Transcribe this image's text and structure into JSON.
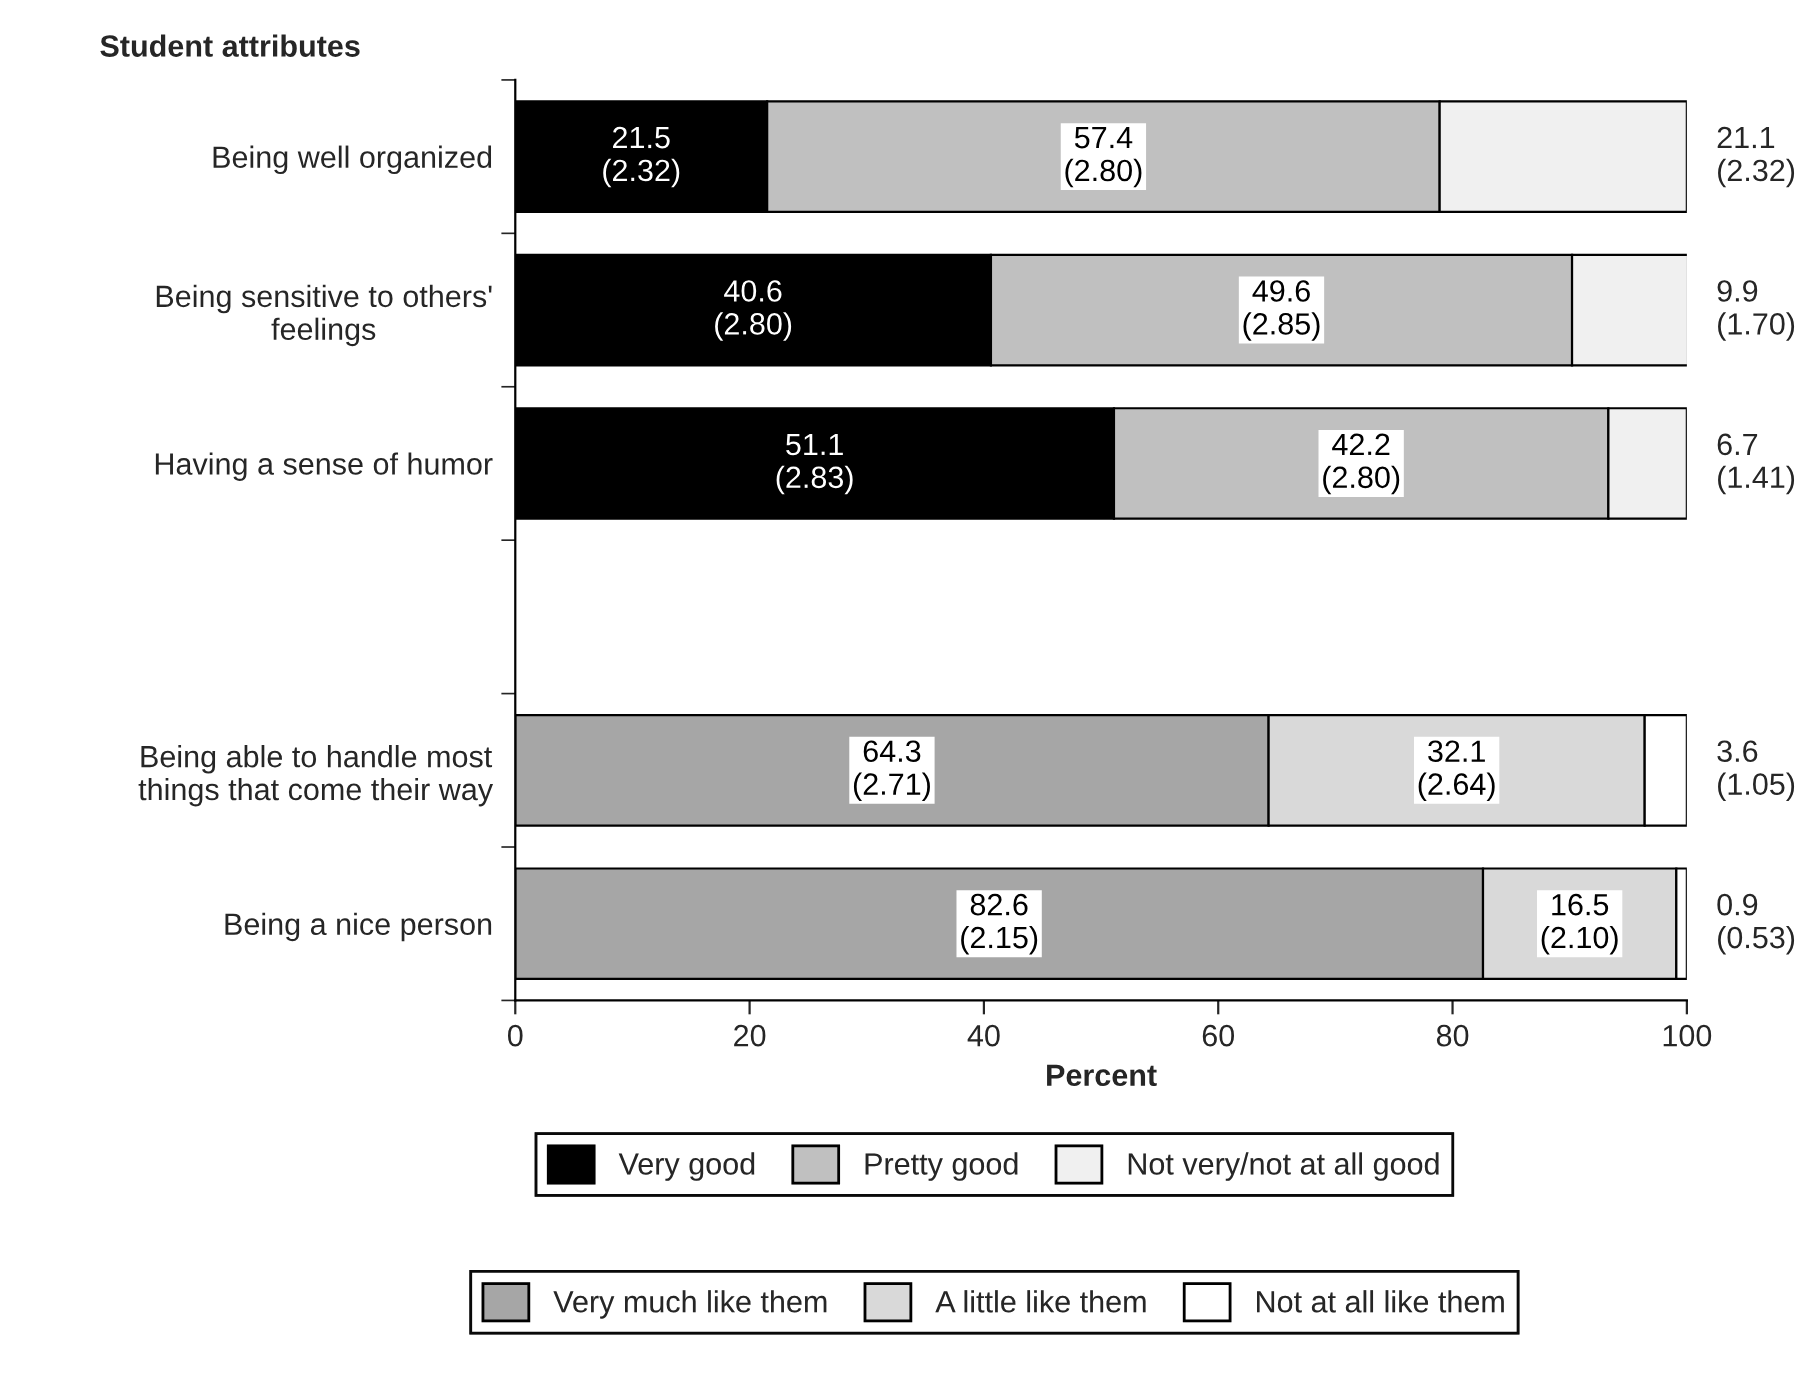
{
  "chart_data": {
    "type": "bar",
    "orientation": "horizontal",
    "stacked": true,
    "ylabel": "Student attributes",
    "xlabel": "Percent",
    "categories": [
      "Being well organized",
      "Being sensitive to others' feelings",
      "Having a sense of humor",
      null,
      "Being able to handle most things that come their way",
      "Being a nice person"
    ],
    "series": [
      {
        "name": "Very good",
        "color": "#000000",
        "values": [
          21.5,
          40.6,
          51.1,
          null,
          null,
          null
        ],
        "value_labels": [
          "21.5\n(2.32)",
          "40.6\n(2.80)",
          "51.1\n(2.83)",
          null,
          null,
          null
        ]
      },
      {
        "name": "Pretty good",
        "color": "#c0c0c0",
        "values": [
          57.4,
          49.6,
          42.2,
          null,
          null,
          null
        ],
        "value_labels": [
          "57.4\n(2.80)",
          "49.6\n(2.85)",
          "42.2\n(2.80)",
          null,
          null,
          null
        ]
      },
      {
        "name": "Not very/not at all good",
        "color": "#f0f0f0",
        "values": [
          21.1,
          9.9,
          6.7,
          null,
          null,
          null
        ],
        "value_labels": [
          "21.1\n(2.32)",
          "9.9\n(1.70)",
          "6.7\n(1.41)",
          null,
          null,
          null
        ]
      },
      {
        "name": "Very much like them",
        "color": "#a6a6a6",
        "values": [
          null,
          null,
          null,
          null,
          64.3,
          82.6
        ],
        "value_labels": [
          null,
          null,
          null,
          null,
          "64.3\n(2.71)",
          "82.6\n(2.15)"
        ]
      },
      {
        "name": "A little like them",
        "color": "#d9d9d9",
        "values": [
          null,
          null,
          null,
          null,
          32.1,
          16.5
        ],
        "value_labels": [
          null,
          null,
          null,
          null,
          "32.1\n(2.64)",
          "16.5\n(2.10)"
        ]
      },
      {
        "name": "Not at all like them",
        "color": "#ffffff",
        "values": [
          null,
          null,
          null,
          null,
          3.6,
          0.9
        ],
        "value_labels": [
          null,
          null,
          null,
          null,
          "3.6\n(1.05)",
          "0.9\n(0.53)"
        ]
      }
    ],
    "xlim": [
      0,
      100
    ],
    "xticks": [
      0,
      20,
      40,
      60,
      80,
      100
    ],
    "grid": false,
    "legend": "bottom"
  }
}
